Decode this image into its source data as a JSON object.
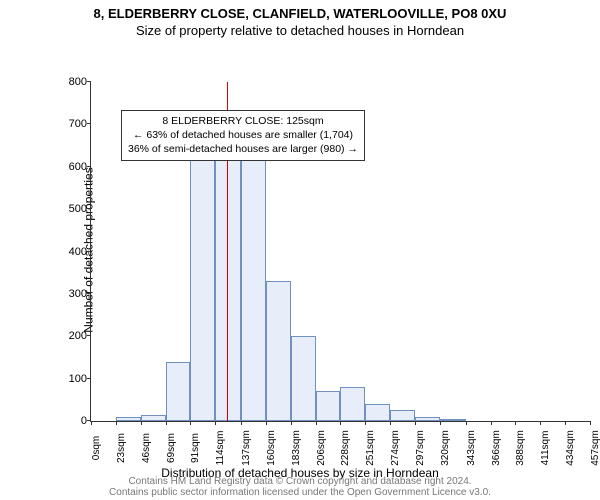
{
  "header": {
    "address": "8, ELDERBERRY CLOSE, CLANFIELD, WATERLOOVILLE, PO8 0XU",
    "subtitle": "Size of property relative to detached houses in Horndean"
  },
  "chart": {
    "type": "histogram",
    "ylabel": "Number of detached properties",
    "xlabel": "Distribution of detached houses by size in Horndean",
    "ylim": [
      0,
      800
    ],
    "ytick_step": 100,
    "xtick_labels": [
      "0sqm",
      "23sqm",
      "46sqm",
      "69sqm",
      "91sqm",
      "114sqm",
      "137sqm",
      "160sqm",
      "183sqm",
      "206sqm",
      "228sqm",
      "251sqm",
      "274sqm",
      "297sqm",
      "320sqm",
      "343sqm",
      "366sqm",
      "388sqm",
      "411sqm",
      "434sqm",
      "457sqm"
    ],
    "xtick_max_value": 457,
    "bar_x_starts": [
      0,
      23,
      46,
      69,
      91,
      114,
      137,
      160,
      183,
      206,
      228,
      251,
      274,
      297,
      320,
      343,
      366,
      388,
      411,
      434
    ],
    "bar_values": [
      0,
      10,
      15,
      140,
      635,
      630,
      615,
      330,
      200,
      70,
      80,
      40,
      25,
      10,
      5,
      0,
      0,
      0,
      0,
      0
    ],
    "bar_fill": "#e8eef9",
    "bar_border": "#7090c0",
    "marker_value_sqm": 125,
    "marker_color": "#d40000",
    "background_color": "#ffffff",
    "axis_color": "#333333",
    "tick_fontsize": 11,
    "label_fontsize": 12,
    "title_fontsize": 13
  },
  "annotation": {
    "line1": "8 ELDERBERRY CLOSE: 125sqm",
    "line2": "← 63% of detached houses are smaller (1,704)",
    "line3": "36% of semi-detached houses are larger (980) →"
  },
  "footer": {
    "line1": "Contains HM Land Registry data © Crown copyright and database right 2024.",
    "line2": "Contains public sector information licensed under the Open Government Licence v3.0."
  }
}
